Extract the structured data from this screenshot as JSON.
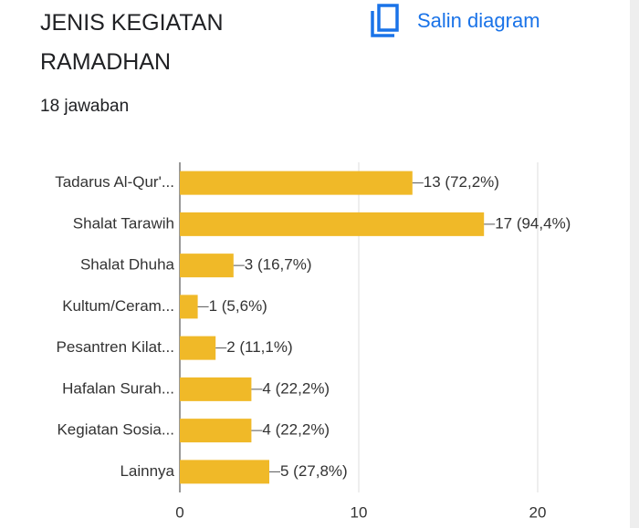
{
  "actions": {
    "copy": "Salin diagram"
  },
  "chart_data": {
    "type": "bar",
    "orientation": "horizontal",
    "title": "JENIS KEGIATAN RAMADHAN",
    "subtitle": "18 jawaban",
    "categories": [
      "Tadarus Al-Qur'...",
      "Shalat Tarawih",
      "Shalat Dhuha",
      "Kultum/Ceram...",
      "Pesantren Kilat...",
      "Hafalan Surah...",
      "Kegiatan Sosia...",
      "Lainnya"
    ],
    "values": [
      13,
      17,
      3,
      1,
      2,
      4,
      4,
      5
    ],
    "value_labels": [
      "13 (72,2%)",
      "17 (94,4%)",
      "3 (16,7%)",
      "1 (5,6%)",
      "2 (11,1%)",
      "4 (22,2%)",
      "4 (22,2%)",
      "5 (27,8%)"
    ],
    "color": "#f0b928",
    "xlim": [
      0,
      20
    ],
    "xticks": [
      0,
      10,
      20
    ],
    "grid": true
  }
}
